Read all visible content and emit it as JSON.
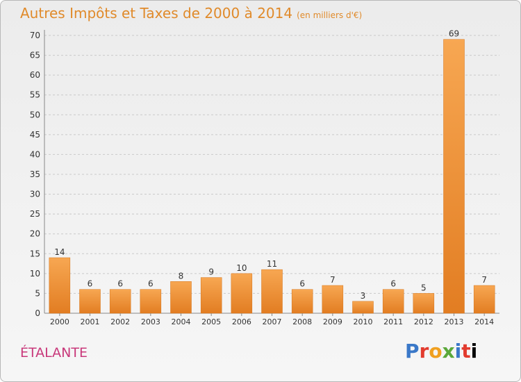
{
  "header": {
    "title": "Autres Impôts et Taxes de 2000 à 2014",
    "unit": "(en milliers d'€)"
  },
  "footer": {
    "commune": "ÉTALANTE",
    "brand": [
      "P",
      "r",
      "o",
      "x",
      "i",
      "t",
      "i"
    ]
  },
  "colors": {
    "title": "#e08a2a",
    "bar_light": "#f7a752",
    "bar_dark": "#e27d22",
    "commune": "#c8387a"
  },
  "chart_data": {
    "type": "bar",
    "title": "Autres Impôts et Taxes de 2000 à 2014",
    "categories": [
      "2000",
      "2001",
      "2002",
      "2003",
      "2004",
      "2005",
      "2006",
      "2007",
      "2008",
      "2009",
      "2010",
      "2011",
      "2012",
      "2013",
      "2014"
    ],
    "values": [
      14,
      6,
      6,
      6,
      8,
      9,
      10,
      11,
      6,
      7,
      3,
      6,
      5,
      69,
      7
    ],
    "yticks": [
      0,
      5,
      10,
      15,
      20,
      25,
      30,
      35,
      40,
      45,
      50,
      55,
      60,
      65,
      70
    ],
    "ylim": [
      0,
      70
    ],
    "grid": "horizontal dashed",
    "legend": "none"
  }
}
